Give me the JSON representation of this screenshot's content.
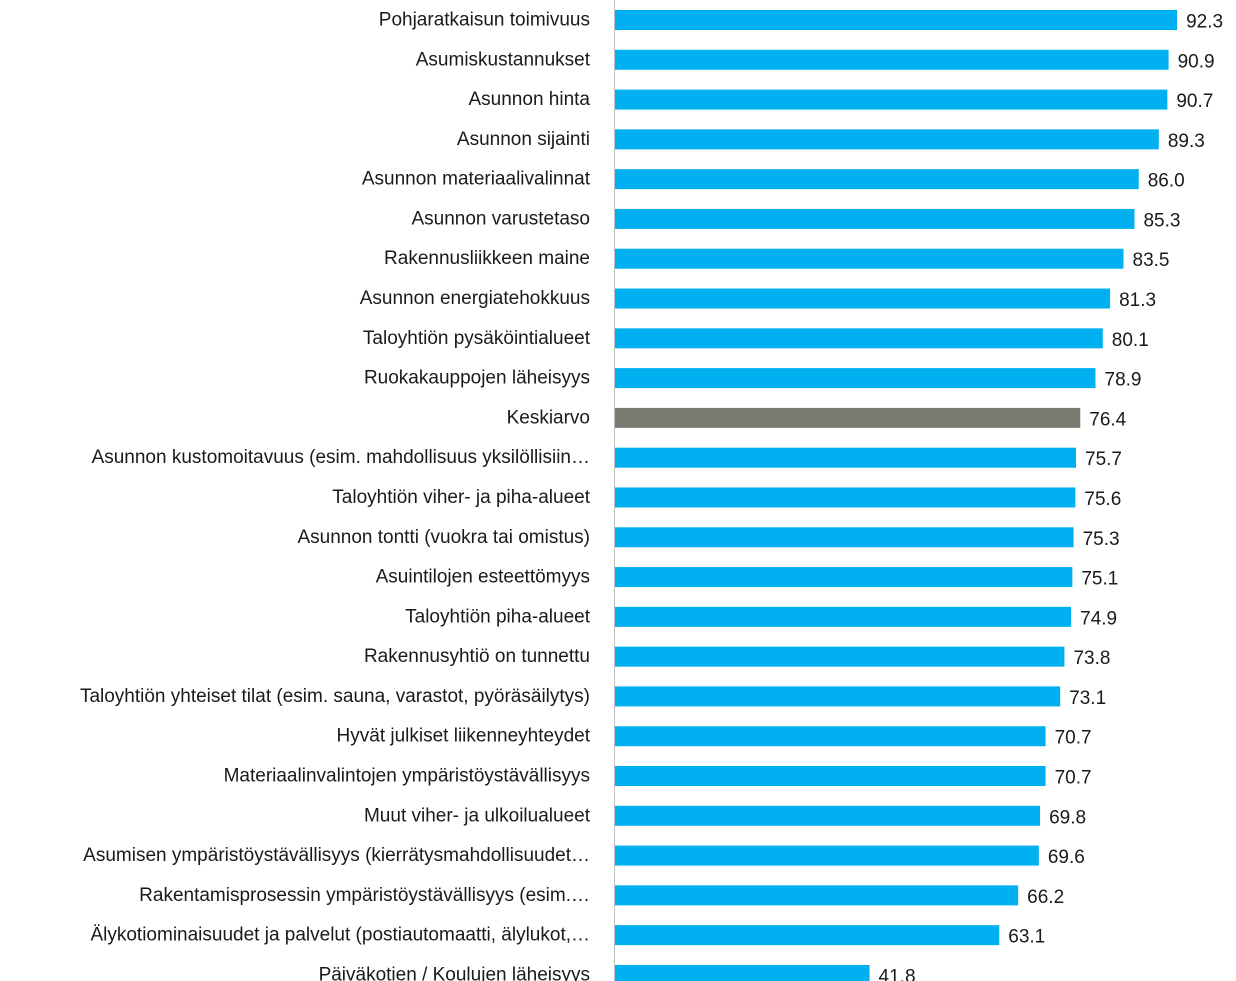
{
  "chart_data": {
    "type": "bar",
    "orientation": "horizontal",
    "title": "",
    "xlabel": "",
    "ylabel": "",
    "xlim": [
      0,
      100
    ],
    "grid": false,
    "legend": "none",
    "colors": {
      "bar": "#00b0f0",
      "highlight": "#7a7a70",
      "axis": "#bfbfbf"
    },
    "highlight_category": "Keskiarvo",
    "categories": [
      "Pohjaratkaisun toimivuus",
      "Asumiskustannukset",
      "Asunnon hinta",
      "Asunnon sijainti",
      "Asunnon materiaalivalinnat",
      "Asunnon varustetaso",
      "Rakennusliikkeen maine",
      "Asunnon energiatehokkuus",
      "Taloyhtiön pysäköintialueet",
      "Ruokakauppojen läheisyys",
      "Keskiarvo",
      "Asunnon kustomoitavuus (esim. mahdollisuus yksilöllisiin…",
      "Taloyhtiön viher- ja piha-alueet",
      "Asunnon tontti (vuokra tai omistus)",
      "Asuintilojen esteettömyys",
      "Taloyhtiön piha-alueet",
      "Rakennusyhtiö on tunnettu",
      "Taloyhtiön yhteiset tilat (esim. sauna, varastot, pyöräsäilytys)",
      "Hyvät julkiset liikenneyhteydet",
      "Materiaalinvalintojen ympäristöystävällisyys",
      "Muut viher- ja ulkoilualueet",
      "Asumisen ympäristöystävällisyys (kierrätysmahdollisuudet…",
      "Rakentamisprosessin ympäristöystävällisyys (esim.…",
      "Älykotiominaisuudet ja palvelut (postiautomaatti, älylukot,…",
      "Päiväkotien / Koulujen läheisyys"
    ],
    "values": [
      92.3,
      90.9,
      90.7,
      89.3,
      86.0,
      85.3,
      83.5,
      81.3,
      80.1,
      78.9,
      76.4,
      75.7,
      75.6,
      75.3,
      75.1,
      74.9,
      73.8,
      73.1,
      70.7,
      70.7,
      69.8,
      69.6,
      66.2,
      63.1,
      41.8
    ],
    "value_labels": [
      "92.3",
      "90.9",
      "90.7",
      "89.3",
      "86.0",
      "85.3",
      "83.5",
      "81.3",
      "80.1",
      "78.9",
      "76.4",
      "75.7",
      "75.6",
      "75.3",
      "75.1",
      "74.9",
      "73.8",
      "73.1",
      "70.7",
      "70.7",
      "69.8",
      "69.6",
      "66.2",
      "63.1",
      "41.8"
    ]
  }
}
